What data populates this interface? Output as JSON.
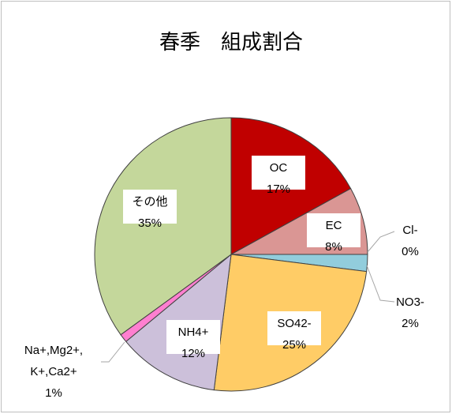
{
  "chart_data": {
    "type": "pie",
    "title": "春季　組成割合",
    "categories": [
      "OC",
      "EC",
      "Cl-",
      "NO3-",
      "SO42-",
      "NH4+",
      "Na+,Mg2+, K+,Ca2+",
      "その他"
    ],
    "values": [
      17,
      8,
      0,
      2,
      25,
      12,
      1,
      35
    ],
    "value_labels": [
      "17%",
      "8%",
      "0%",
      "2%",
      "25%",
      "12%",
      "1%",
      "35%"
    ],
    "colors": [
      "#c00000",
      "#da9694",
      "#4bacc6",
      "#92cddc",
      "#ffcc66",
      "#ccc0da",
      "#ff7fd0",
      "#c4d79b"
    ]
  }
}
